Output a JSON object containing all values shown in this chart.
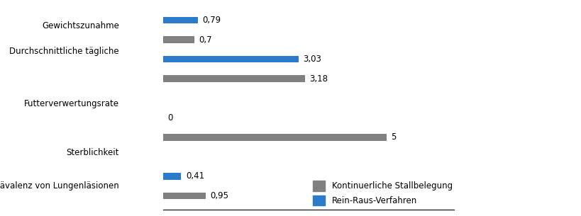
{
  "rows": [
    {
      "gray_label": "Prävalenz von Lungenläsionen",
      "blue_label": "Sterblichkeit",
      "gray_val": 0.95,
      "blue_val": 0.41,
      "gray_txt": "0,95",
      "blue_txt": "0,41"
    },
    {
      "gray_label": "Futterverwertungsrate",
      "blue_label": "Futterverwertungsrate",
      "gray_val": 5.0,
      "blue_val": 0.0,
      "gray_txt": "5",
      "blue_txt": "0"
    },
    {
      "gray_label": "Durchschnittliche tägliche",
      "blue_label": "Gewichtszunahme",
      "gray_val": 3.18,
      "blue_val": 3.03,
      "gray_txt": "3,18",
      "blue_txt": "3,03"
    },
    {
      "gray_label": "",
      "blue_label": "",
      "gray_val": 0.7,
      "blue_val": 0.79,
      "gray_txt": "0,7",
      "blue_txt": "0,79"
    }
  ],
  "gray_color": "#808080",
  "blue_color": "#2b7bc9",
  "legend_gray": "Kontinuerliche Stallbelegung",
  "legend_blue": "Rein-Raus-Verfahren",
  "xlim": [
    0,
    6.5
  ],
  "bar_height": 0.35,
  "background_color": "#ffffff",
  "fontsize": 8.5
}
